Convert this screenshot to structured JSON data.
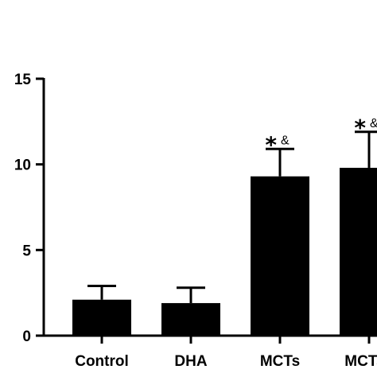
{
  "chart_data": {
    "type": "bar",
    "categories": [
      "Control",
      "DHA",
      "MCTs",
      "MCTs+"
    ],
    "values": [
      2.1,
      1.9,
      9.3,
      9.8
    ],
    "errors": [
      0.8,
      0.9,
      1.6,
      2.1
    ],
    "annotations": [
      {
        "category": "MCTs",
        "symbol": "*",
        "mark": "&"
      },
      {
        "category": "MCTs+",
        "symbol": "*",
        "mark": "&"
      }
    ],
    "title": "",
    "xlabel": "",
    "ylabel": "",
    "ylim": [
      0,
      15
    ],
    "yticks": [
      "0",
      "5",
      "10",
      "15"
    ],
    "grid": false,
    "bar_color": "#000000"
  }
}
